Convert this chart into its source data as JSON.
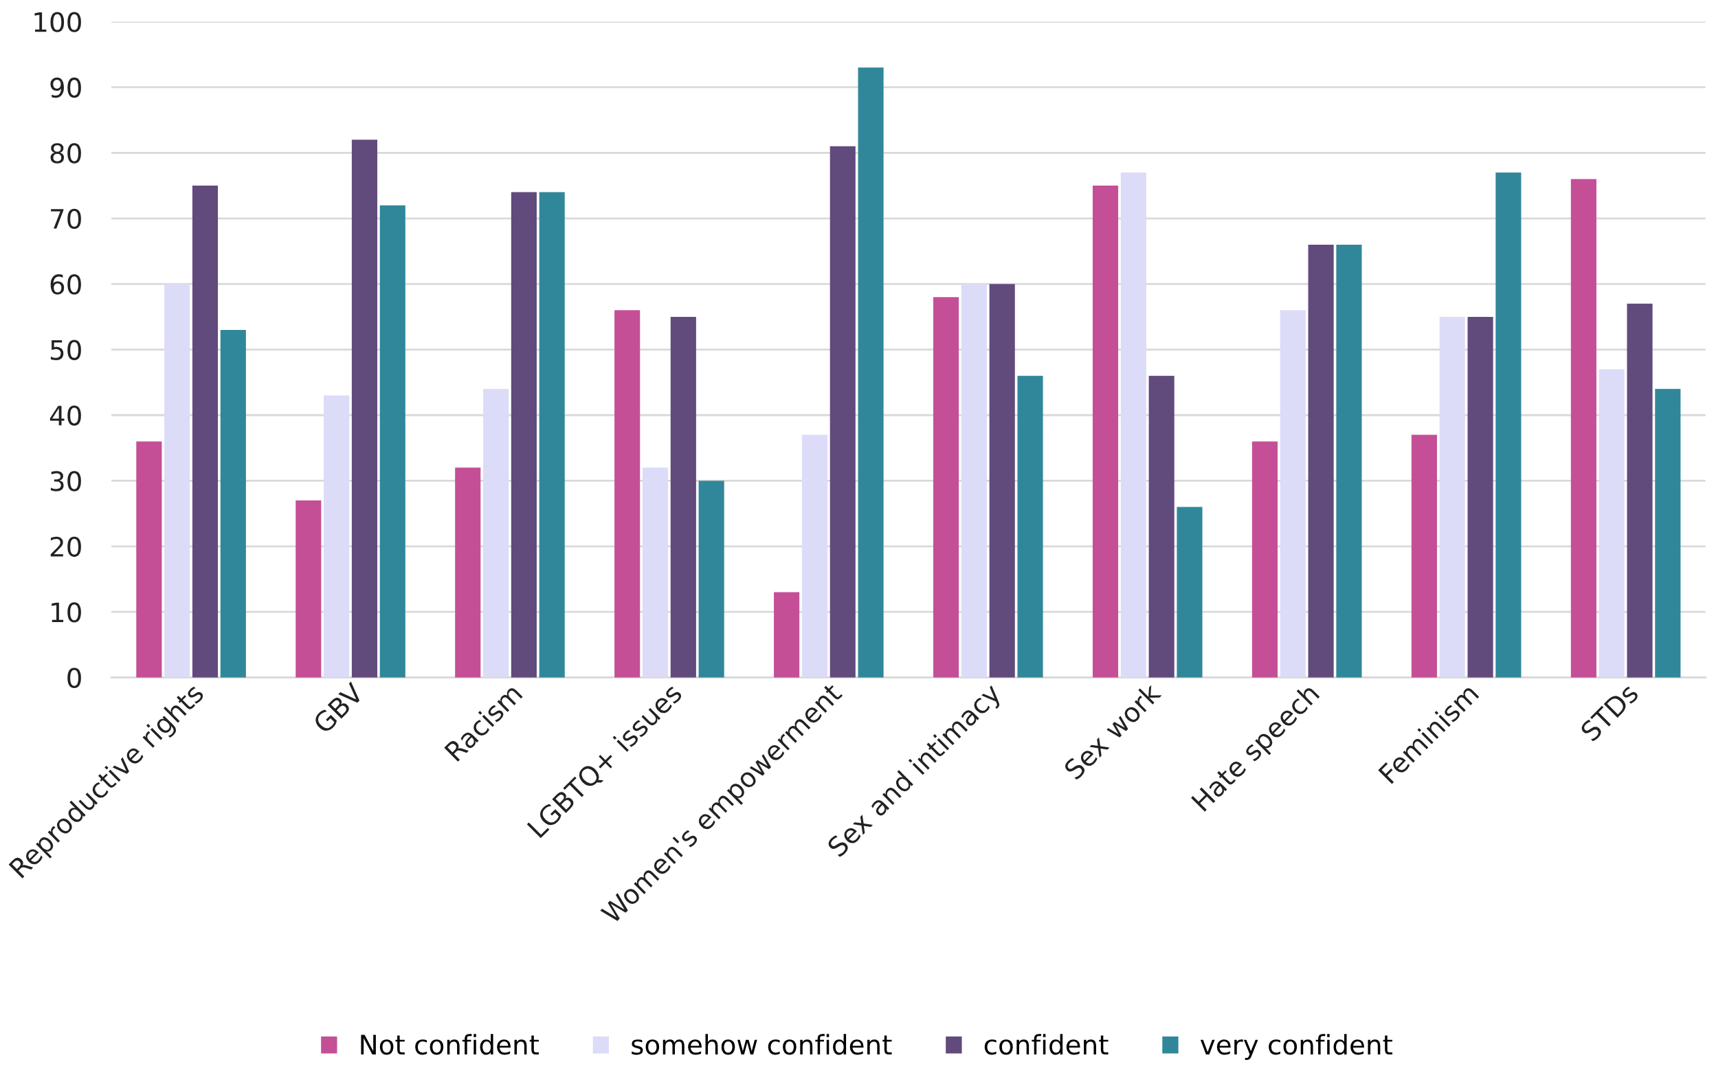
{
  "chart_data": {
    "type": "bar",
    "categories": [
      "Reproductive rights",
      "GBV",
      "Racism",
      "LGBTQ+ issues",
      "Women's empowerment",
      "Sex and intimacy",
      "Sex work",
      "Hate speech",
      "Feminism",
      "STDs"
    ],
    "series": [
      {
        "name": "Not confident",
        "color": "#c44f96",
        "values": [
          36,
          27,
          32,
          56,
          13,
          58,
          75,
          36,
          37,
          76
        ]
      },
      {
        "name": "somehow confident",
        "color": "#dcdcf8",
        "values": [
          60,
          43,
          44,
          32,
          37,
          60,
          77,
          56,
          55,
          47
        ]
      },
      {
        "name": "confident",
        "color": "#614a7c",
        "values": [
          75,
          82,
          74,
          55,
          81,
          60,
          46,
          66,
          55,
          57
        ]
      },
      {
        "name": "very confident",
        "color": "#31879a",
        "values": [
          53,
          72,
          74,
          30,
          93,
          46,
          26,
          66,
          77,
          44
        ]
      }
    ],
    "ylim": [
      0,
      100
    ],
    "yticks": [
      0,
      10,
      20,
      30,
      40,
      50,
      60,
      70,
      80,
      90,
      100
    ],
    "grid": "y",
    "legend": "bottom"
  }
}
